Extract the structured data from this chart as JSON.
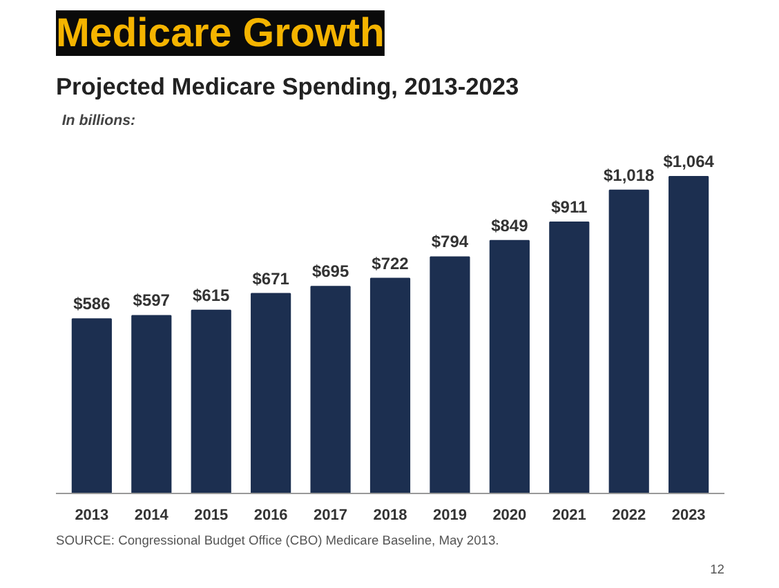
{
  "chart_data": {
    "type": "bar",
    "title": "Medicare Growth",
    "subtitle": "Projected Medicare Spending, 2013-2023",
    "categories": [
      "2013",
      "2014",
      "2015",
      "2016",
      "2017",
      "2018",
      "2019",
      "2020",
      "2021",
      "2022",
      "2023"
    ],
    "values": [
      586,
      597,
      615,
      671,
      695,
      722,
      794,
      849,
      911,
      1018,
      1064
    ],
    "value_labels": [
      "$586",
      "$597",
      "$615",
      "$671",
      "$695",
      "$722",
      "$794",
      "$849",
      "$911",
      "$1,018",
      "$1,064"
    ],
    "color": "#1c2f50",
    "grid": false,
    "annotations": [
      "In billions:",
      "SOURCE: Congressional Budget Office (CBO) Medicare Baseline, May 2013.",
      "12"
    ]
  }
}
